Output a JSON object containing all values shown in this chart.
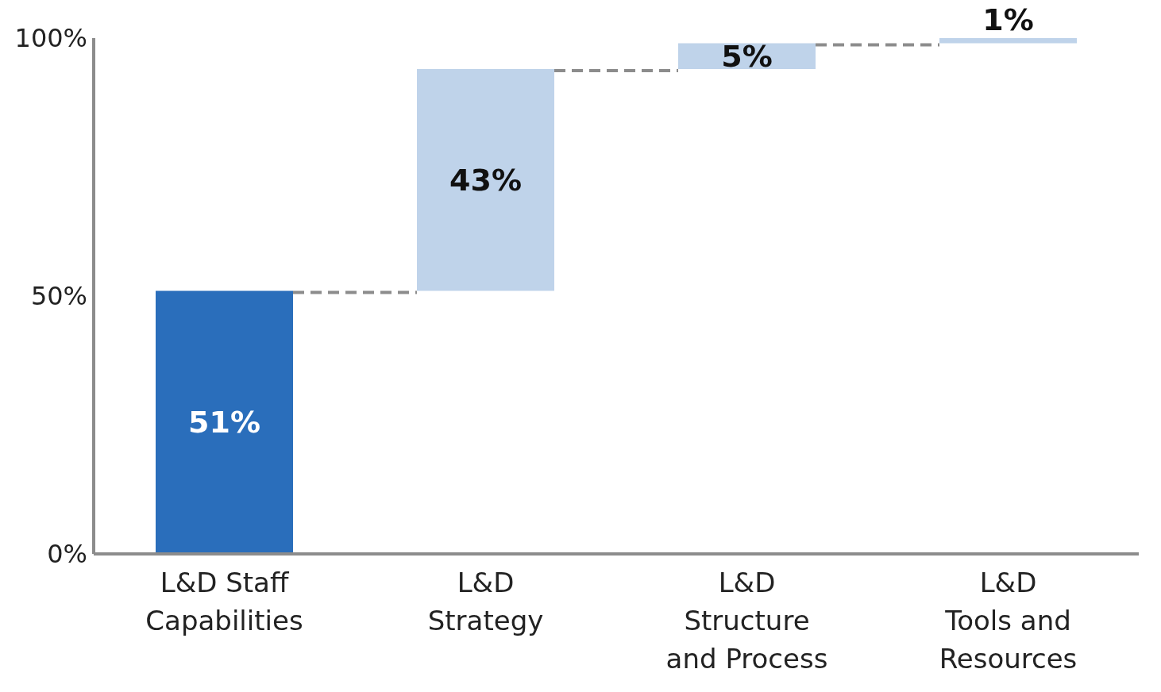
{
  "chart_data": {
    "type": "bar",
    "categories": [
      "L&D Staff\nCapabilities",
      "L&D\nStrategy",
      "L&D\nStructure\nand Process",
      "L&D\nTools and\nResources"
    ],
    "values": [
      51,
      43,
      5,
      1
    ],
    "base": [
      0,
      51,
      94,
      99
    ],
    "colors": [
      "#2a6ebb",
      "#bfd3ea",
      "#bfd3ea",
      "#bfd3ea"
    ],
    "ylim": [
      0,
      100
    ],
    "yticks": [
      {
        "value": 0,
        "label": "0%"
      },
      {
        "value": 50,
        "label": "50%"
      },
      {
        "value": 100,
        "label": "100%"
      }
    ],
    "value_labels": [
      "51%",
      "43%",
      "5%",
      "1%"
    ],
    "grid": false,
    "legend": false
  }
}
